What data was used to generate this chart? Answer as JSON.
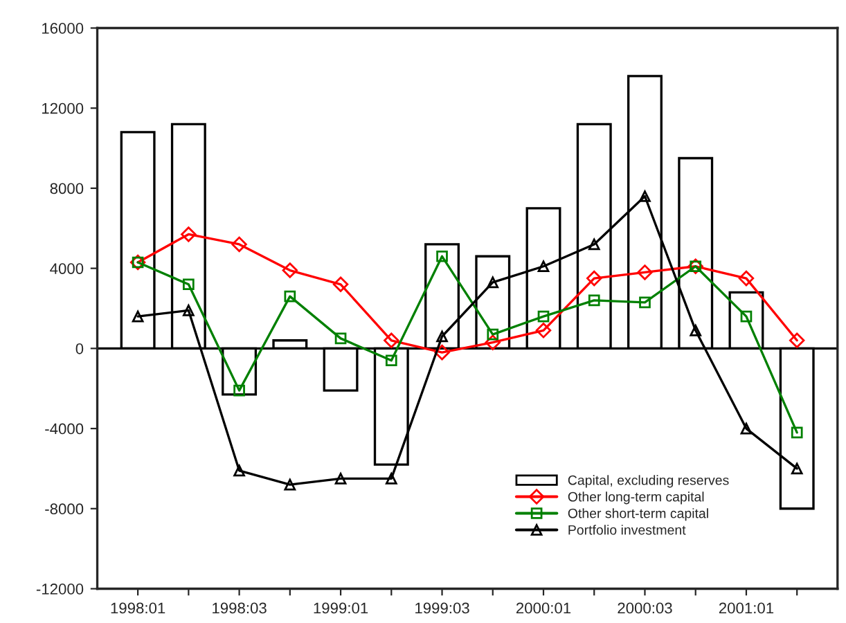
{
  "chart_data": {
    "type": "bar",
    "categories": [
      "1998:01",
      null,
      "1998:03",
      null,
      "1999:01",
      null,
      "1999:03",
      null,
      "2000:01",
      null,
      "2000:03",
      null,
      "2001:01",
      null
    ],
    "series": [
      {
        "name": "Capital, excluding reserves",
        "color": "#ffffff",
        "values": [
          10800,
          11200,
          -2300,
          400,
          -2100,
          -5800,
          5200,
          4600,
          7000,
          11200,
          13600,
          9500,
          2800,
          -8000
        ]
      },
      {
        "name": "Other long-term capital",
        "type": "line",
        "color": "#ff0000",
        "marker": "diamond",
        "values": [
          4300,
          5700,
          5200,
          3900,
          3200,
          400,
          -200,
          300,
          900,
          3500,
          3800,
          4100,
          3500,
          400
        ]
      },
      {
        "name": "Other short-term capital",
        "type": "line",
        "color": "#008000",
        "marker": "square",
        "values": [
          4300,
          3200,
          -2100,
          2600,
          500,
          -600,
          4600,
          700,
          1600,
          2400,
          2300,
          4100,
          1600,
          -4200
        ]
      },
      {
        "name": "Portfolio investment",
        "type": "line",
        "color": "#000000",
        "marker": "triangle",
        "values": [
          1600,
          1900,
          -6100,
          -6800,
          -6500,
          -6500,
          600,
          3300,
          4100,
          5200,
          7600,
          900,
          -4000,
          -6000
        ]
      }
    ],
    "ylim": [
      -12000,
      16000
    ],
    "yticks": [
      -12000,
      -8000,
      -4000,
      0,
      4000,
      8000,
      12000,
      16000
    ],
    "ref_lines": [
      {
        "axis": "y",
        "value": 0,
        "color": "#000000"
      }
    ],
    "grid": false,
    "legend": "bottom right"
  }
}
